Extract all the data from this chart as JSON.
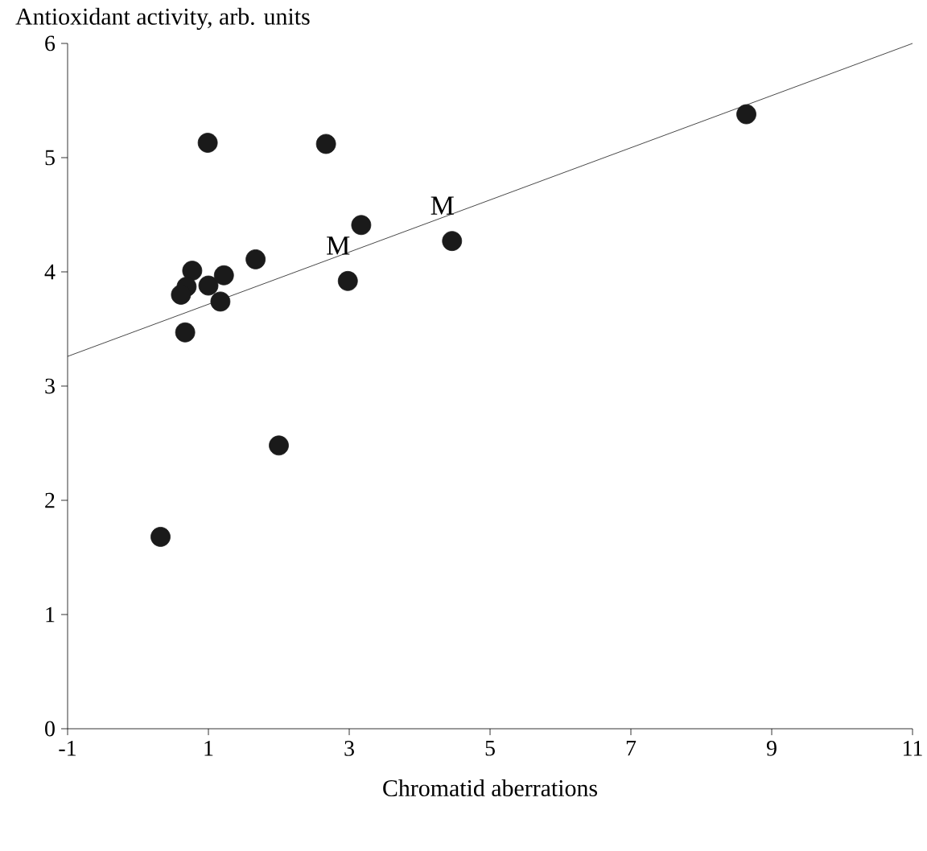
{
  "chart_data": {
    "type": "scatter",
    "xlabel": "Chromatid aberrations",
    "ylabel": "Antioxidant activity, arb. units",
    "xlim": [
      -1,
      11
    ],
    "xticks": [
      -1,
      1,
      3,
      5,
      7,
      9,
      11
    ],
    "ylim": [
      0,
      6
    ],
    "yticks": [
      0,
      1,
      2,
      3,
      4,
      5,
      6
    ],
    "grid": false,
    "series": [
      {
        "marker": "circle",
        "color": "#1a1a1a",
        "x": [
          0.99,
          2.67,
          0.77,
          0.69,
          0.61,
          1.0,
          1.22,
          1.17,
          0.67,
          1.67,
          3.17,
          2.98,
          4.46,
          2.0,
          0.32,
          8.64
        ],
        "values": [
          5.13,
          5.12,
          4.01,
          3.87,
          3.8,
          3.88,
          3.97,
          3.74,
          3.47,
          4.11,
          4.41,
          3.92,
          4.27,
          2.48,
          1.68,
          5.38
        ]
      },
      {
        "type": "line",
        "marker": "none",
        "color": "#1a1a1a",
        "x": [
          -1,
          11
        ],
        "values": [
          3.26,
          6.0
        ]
      }
    ],
    "annotations": [
      {
        "text": "M",
        "x": 2.98,
        "y": 3.92
      },
      {
        "text": "M",
        "x": 4.46,
        "y": 4.27
      }
    ]
  }
}
